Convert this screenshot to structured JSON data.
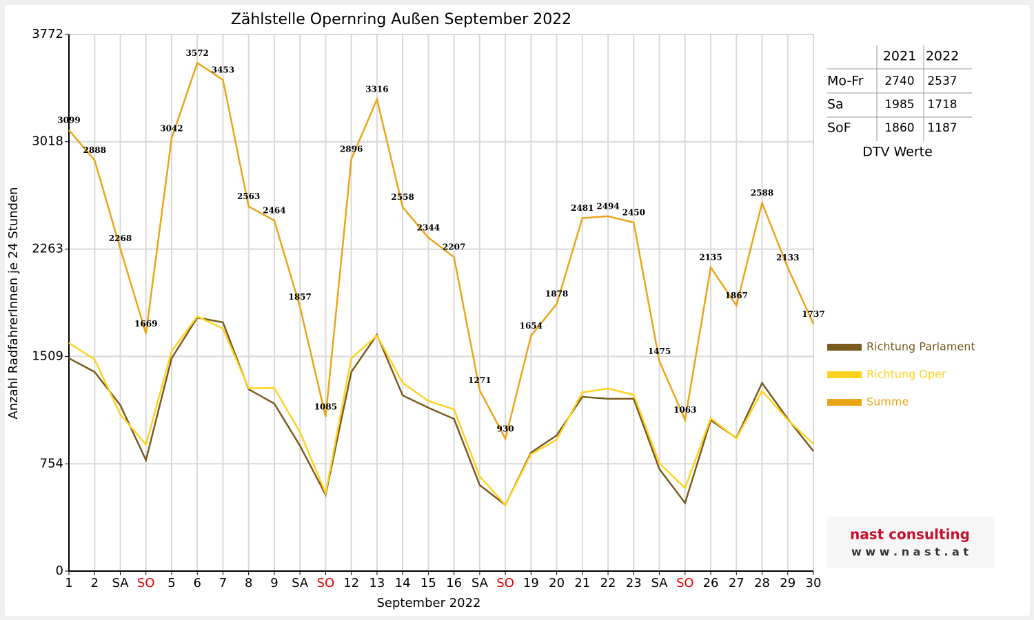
{
  "chart_data": {
    "type": "line",
    "title": "Zählstelle Opernring Außen September 2022",
    "x_label": "September 2022",
    "y_label": "Anzahl RadfahrerInnen je 24 Stunden",
    "categories": [
      "1",
      "2",
      "SA",
      "SO",
      "5",
      "6",
      "7",
      "8",
      "9",
      "SA",
      "SO",
      "12",
      "13",
      "14",
      "15",
      "16",
      "SA",
      "SO",
      "19",
      "20",
      "21",
      "22",
      "23",
      "SA",
      "SO",
      "26",
      "27",
      "28",
      "29",
      "30"
    ],
    "category_colors": [
      "#000",
      "#000",
      "#000",
      "#e00000",
      "#000",
      "#000",
      "#000",
      "#000",
      "#000",
      "#000",
      "#e00000",
      "#000",
      "#000",
      "#000",
      "#000",
      "#000",
      "#000",
      "#e00000",
      "#000",
      "#000",
      "#000",
      "#000",
      "#000",
      "#000",
      "#e00000",
      "#000",
      "#000",
      "#000",
      "#000",
      "#000"
    ],
    "ylim": [
      0,
      3772
    ],
    "yticks": [
      0,
      754,
      1509,
      2263,
      3018,
      3772
    ],
    "grid": true,
    "series": [
      {
        "name": "Richtung Parlament",
        "color": "#7a5a1e",
        "values": [
          1496,
          1400,
          1167,
          780,
          1496,
          1782,
          1748,
          1278,
          1177,
          881,
          537,
          1400,
          1661,
          1235,
          1148,
          1070,
          605,
          465,
          833,
          954,
          1225,
          1211,
          1211,
          717,
          479,
          1061,
          935,
          1322,
          1070,
          843
        ]
      },
      {
        "name": "Richtung Oper",
        "color": "#ffd21f",
        "values": [
          1603,
          1488,
          1101,
          889,
          1546,
          1790,
          1705,
          1285,
          1287,
          976,
          548,
          1496,
          1655,
          1323,
          1196,
          1137,
          666,
          465,
          821,
          924,
          1256,
          1283,
          1239,
          758,
          584,
          1074,
          932,
          1266,
          1063,
          894
        ]
      },
      {
        "name": "Summe",
        "color": "#eaa417",
        "data_labels": true,
        "values": [
          3099,
          2888,
          2268,
          1669,
          3042,
          3572,
          3453,
          2563,
          2464,
          1857,
          1085,
          2896,
          3316,
          2558,
          2344,
          2207,
          1271,
          930,
          1654,
          1878,
          2481,
          2494,
          2450,
          1475,
          1063,
          2135,
          1867,
          2588,
          2133,
          1737
        ]
      }
    ]
  },
  "dtv_table": {
    "columns": [
      "2021",
      "2022"
    ],
    "rows": [
      {
        "label": "Mo-Fr",
        "values": [
          2740,
          2537
        ]
      },
      {
        "label": "Sa",
        "values": [
          1985,
          1718
        ]
      },
      {
        "label": "SoF",
        "values": [
          1860,
          1187
        ]
      }
    ],
    "caption": "DTV Werte"
  },
  "logo": {
    "name": "nast consulting",
    "url": "w w w . n a s t . a t"
  }
}
